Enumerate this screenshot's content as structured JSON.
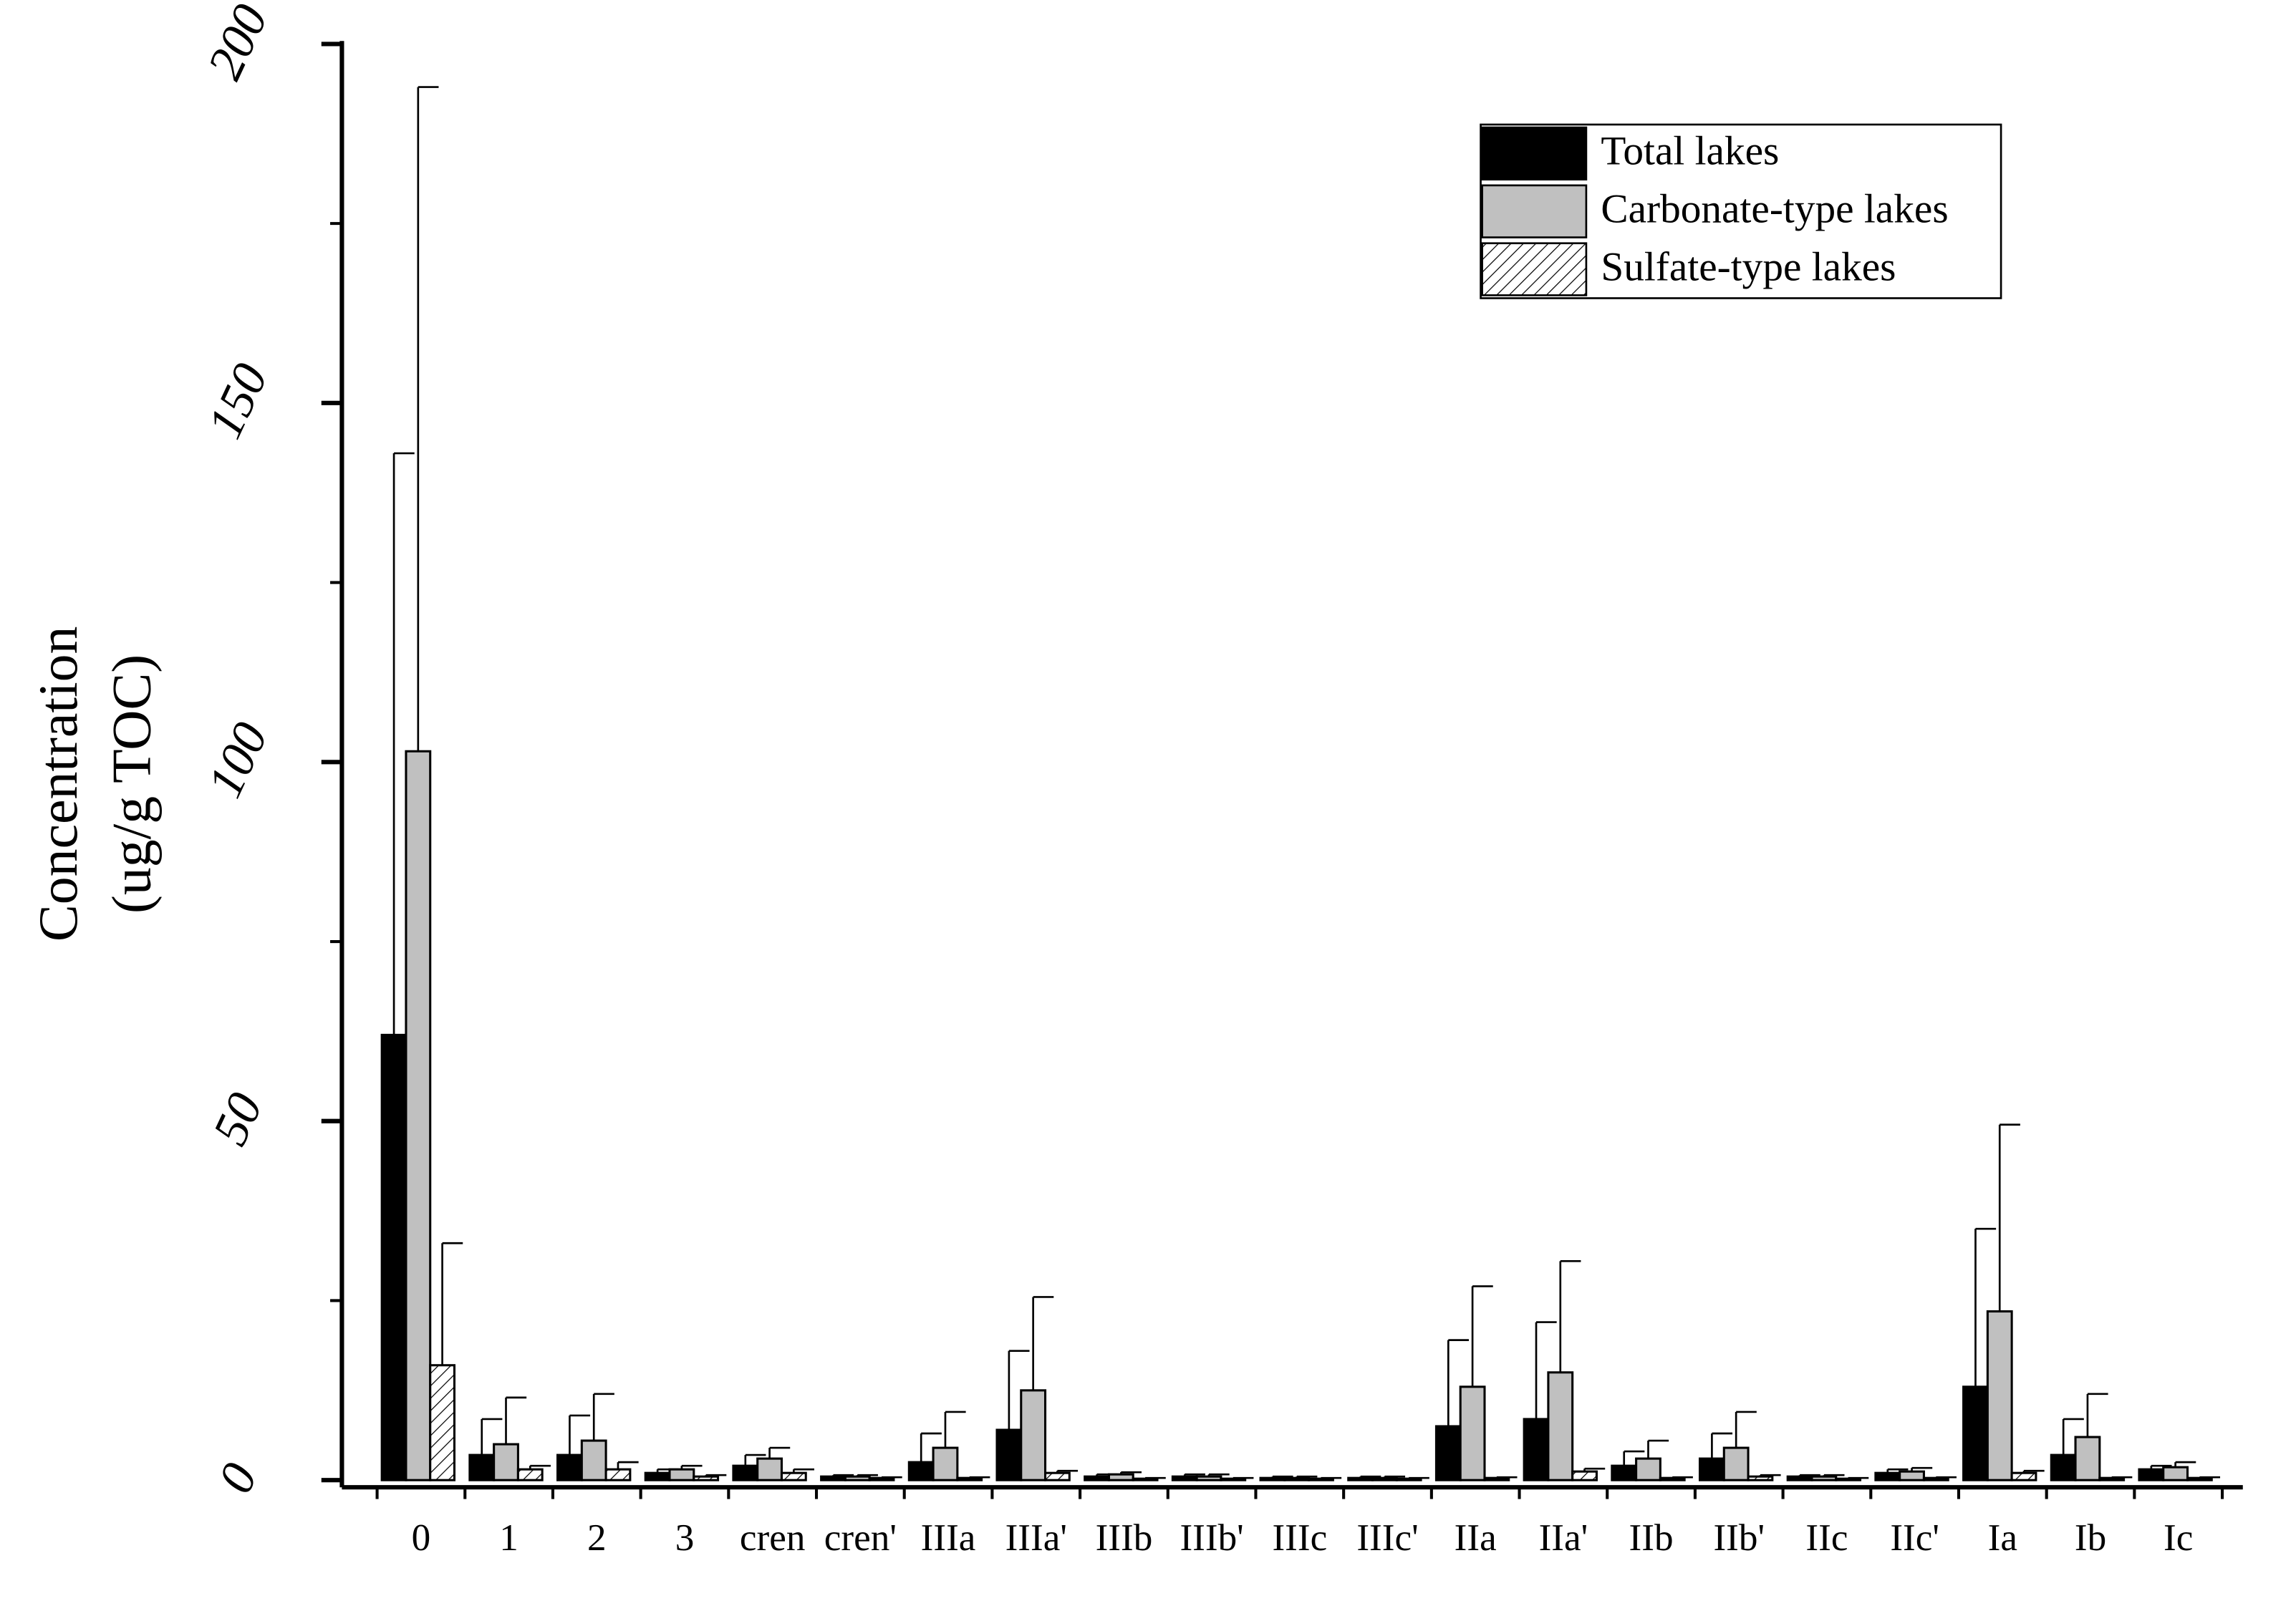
{
  "chart_data": {
    "type": "bar",
    "ylabel": [
      "Concentration",
      "(ug/g TOC)"
    ],
    "categories": [
      "0",
      "1",
      "2",
      "3",
      "cren",
      "cren'",
      "IIIa",
      "IIIa'",
      "IIIb",
      "IIIb'",
      "IIIc",
      "IIIc'",
      "IIa",
      "IIa'",
      "IIb",
      "IIb'",
      "IIc",
      "IIc'",
      "Ia",
      "Ib",
      "Ic"
    ],
    "series": [
      {
        "name": "Total lakes",
        "color": "#000000",
        "values": [
          62,
          3.5,
          3.5,
          1,
          2,
          0.5,
          2.5,
          7,
          0.5,
          0.5,
          0.3,
          0.3,
          7.5,
          8.5,
          2,
          3,
          0.5,
          1,
          13,
          3.5,
          1.5
        ],
        "errors": [
          81,
          5,
          5.5,
          0.5,
          1.5,
          0.2,
          4,
          11,
          0.3,
          0.3,
          0.2,
          0.2,
          12,
          13.5,
          2,
          3.5,
          0.2,
          0.5,
          22,
          5,
          0.5
        ]
      },
      {
        "name": "Carbonate-type lakes",
        "color": "#c0c0c0",
        "values": [
          101.5,
          5,
          5.5,
          1.5,
          3,
          0.5,
          4.5,
          12.5,
          0.8,
          0.5,
          0.3,
          0.3,
          13,
          15,
          3,
          4.5,
          0.5,
          1.2,
          23.5,
          6,
          1.8
        ],
        "errors": [
          92.5,
          6.5,
          6.5,
          0.5,
          1.5,
          0.2,
          5,
          13,
          0.3,
          0.3,
          0.2,
          0.2,
          14,
          15.5,
          2.5,
          5,
          0.2,
          0.5,
          26,
          6,
          0.7
        ]
      },
      {
        "name": "Sulfate-type lakes",
        "color": "#ffffff",
        "hatch": true,
        "values": [
          16,
          1.5,
          1.5,
          0.5,
          1,
          0.3,
          0.3,
          1,
          0.2,
          0.2,
          0.2,
          0.2,
          0.3,
          1.2,
          0.3,
          0.5,
          0.2,
          0.3,
          1,
          0.3,
          0.3
        ],
        "errors": [
          17,
          0.5,
          1,
          0.2,
          0.5,
          0.1,
          0.1,
          0.3,
          0.1,
          0.1,
          0.1,
          0.1,
          0.1,
          0.4,
          0.1,
          0.2,
          0.1,
          0.1,
          0.3,
          0.1,
          0.1
        ]
      }
    ],
    "ylim": [
      -1,
      200
    ],
    "yticks": [
      0,
      50,
      100,
      150,
      200
    ],
    "yminor_ticks": [
      25,
      75,
      125,
      175
    ],
    "legend": "upper right"
  }
}
